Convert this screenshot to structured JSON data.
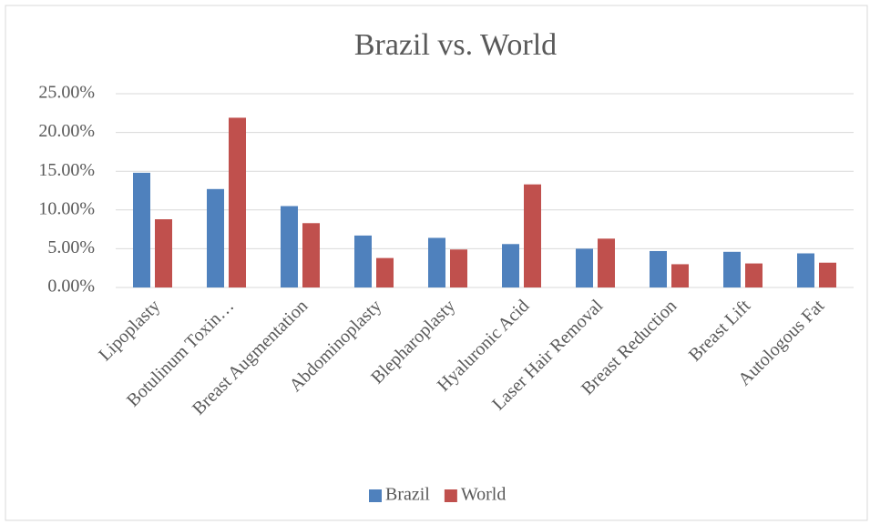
{
  "chart_data": {
    "type": "bar",
    "title": "Brazil vs. World",
    "categories": [
      "Lipoplasty",
      "Botulinum Toxin…",
      "Breast Augmentation",
      "Abdominoplasty",
      "Blepharoplasty",
      "Hyaluronic Acid",
      "Laser Hair Removal",
      "Breast Reduction",
      "Breast Lift",
      "Autologous Fat"
    ],
    "series": [
      {
        "name": "Brazil",
        "color": "#4f81bd",
        "values": [
          14.8,
          12.7,
          10.5,
          6.7,
          6.4,
          5.6,
          5.0,
          4.7,
          4.6,
          4.4
        ]
      },
      {
        "name": "World",
        "color": "#c0504d",
        "values": [
          8.8,
          21.9,
          8.3,
          3.8,
          4.9,
          13.3,
          6.3,
          3.0,
          3.1,
          3.2
        ]
      }
    ],
    "ylim": [
      0,
      25
    ],
    "yticks": [
      {
        "value": 0,
        "label": "0.00%"
      },
      {
        "value": 5,
        "label": "5.00%"
      },
      {
        "value": 10,
        "label": "10.00%"
      },
      {
        "value": 15,
        "label": "15.00%"
      },
      {
        "value": 20,
        "label": "20.00%"
      },
      {
        "value": 25,
        "label": "25.00%"
      }
    ],
    "grid": true,
    "legend": "bottom"
  }
}
